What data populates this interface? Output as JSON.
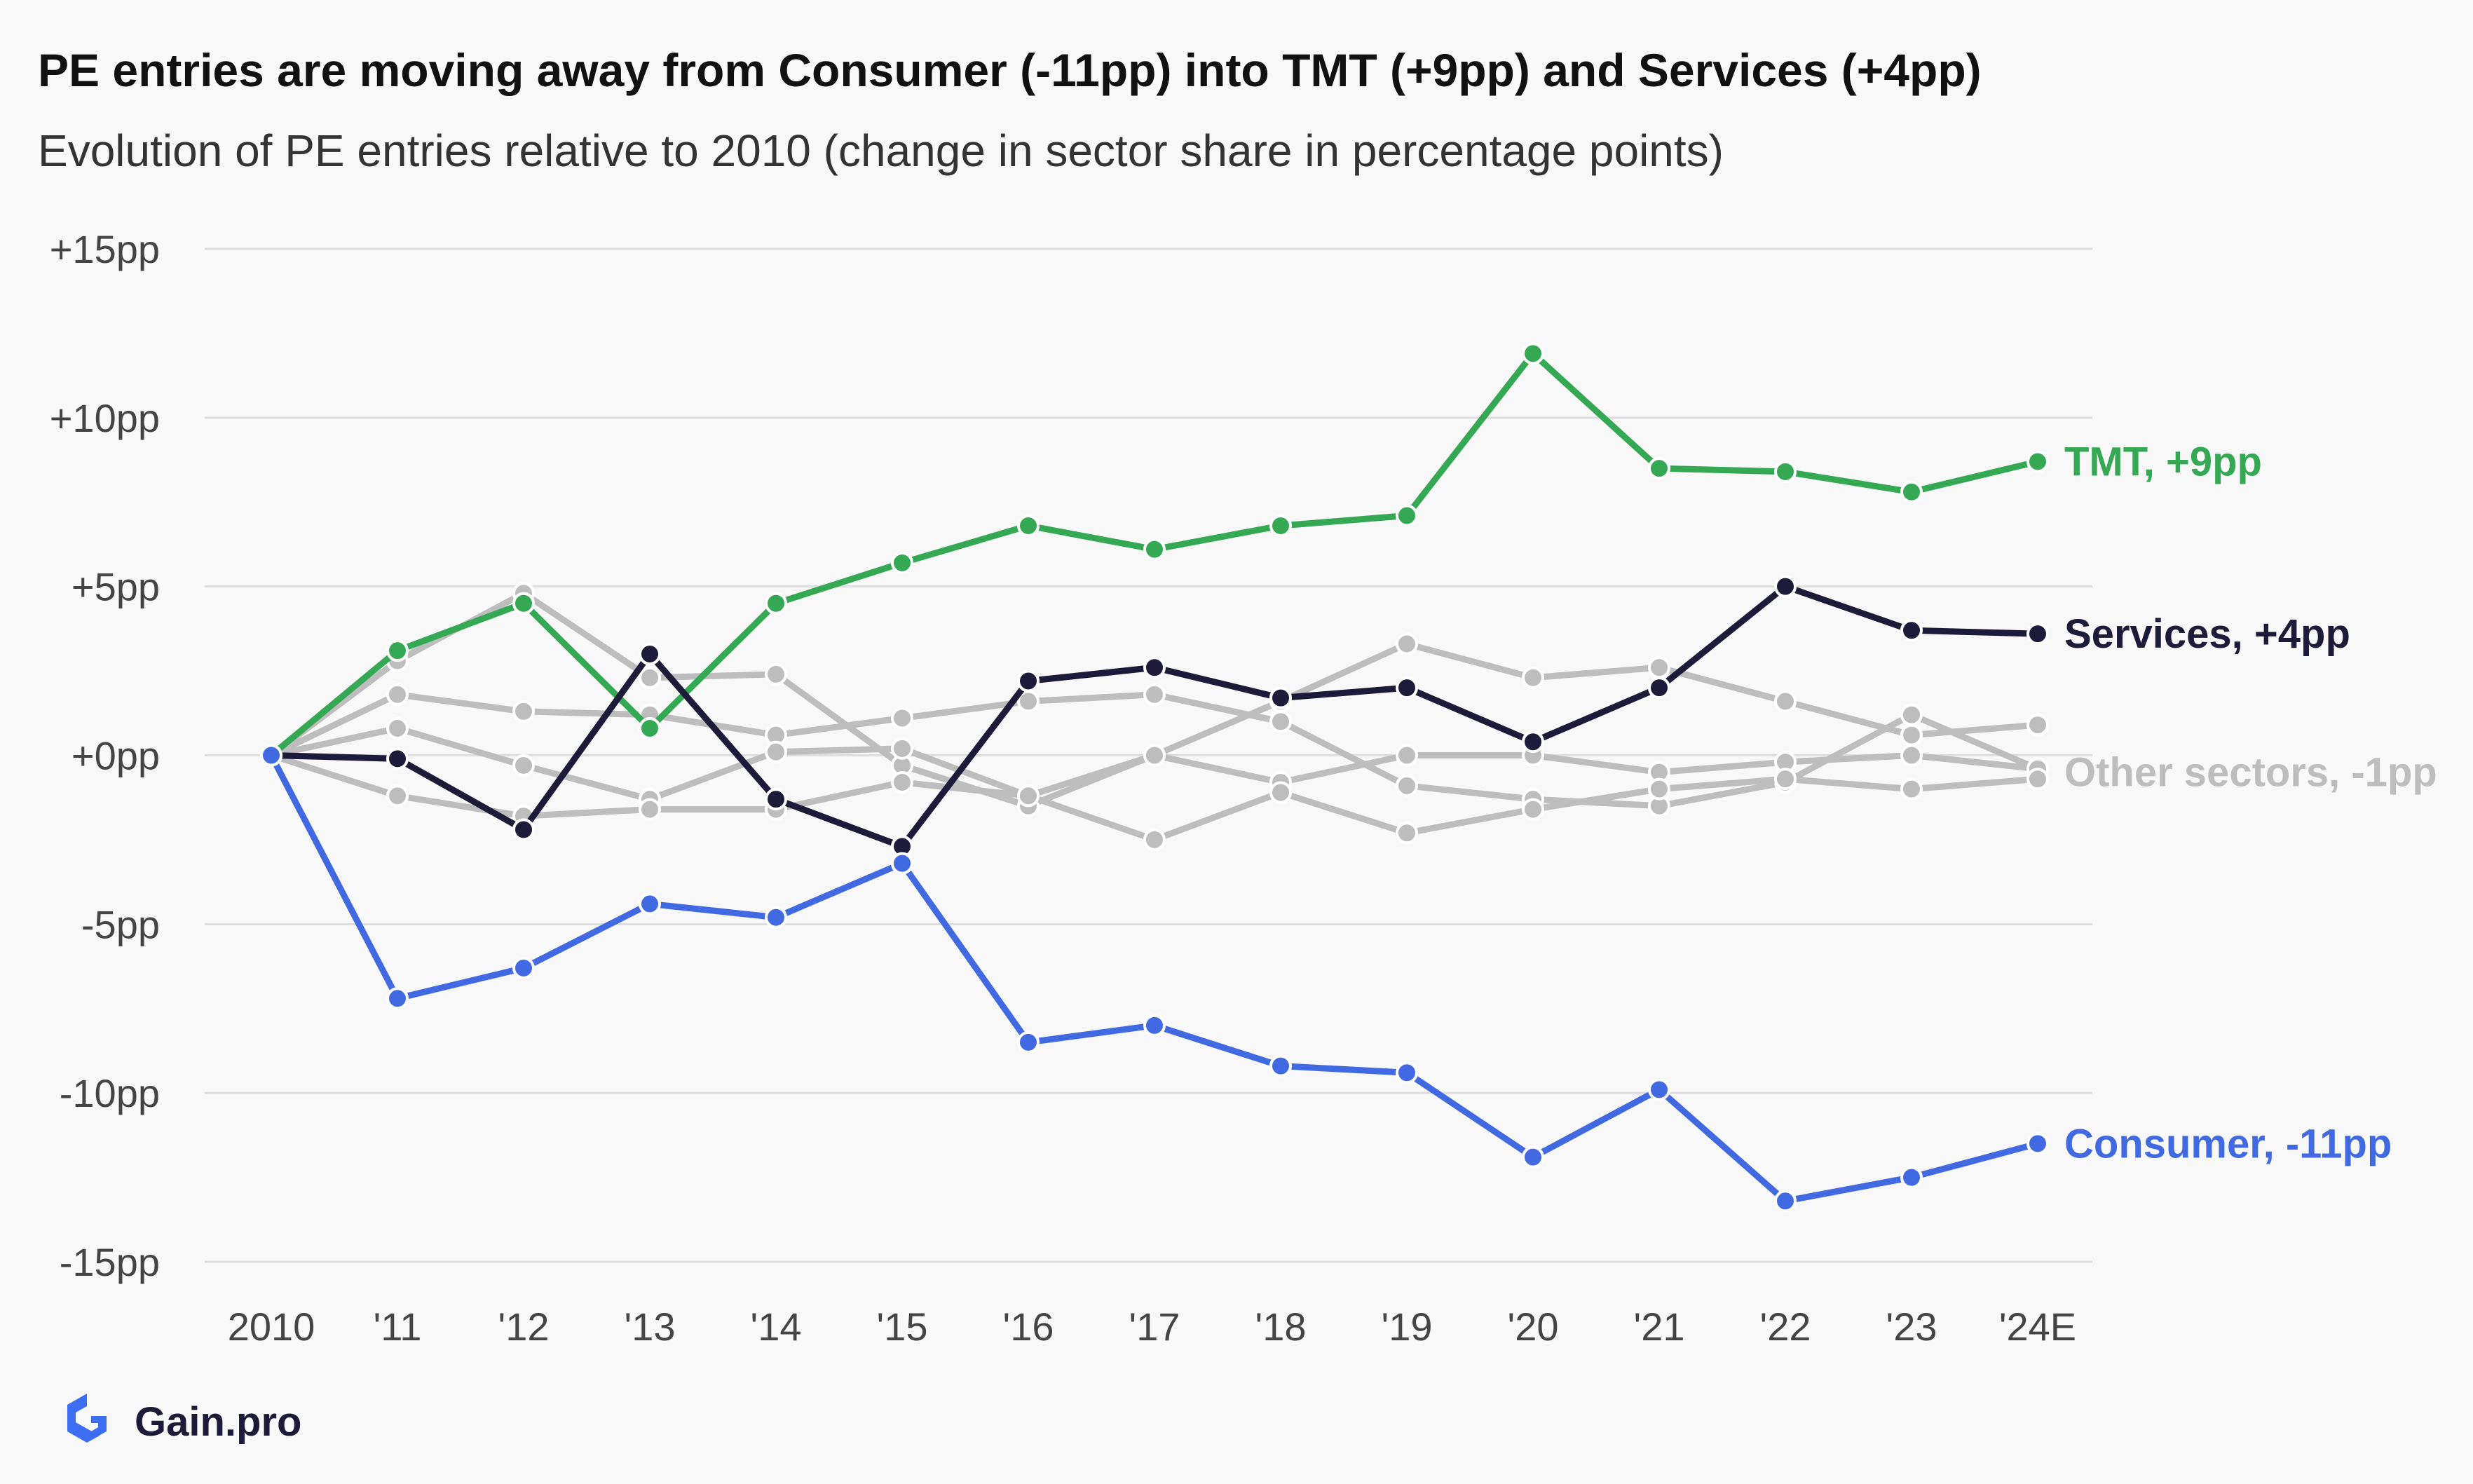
{
  "title": "PE entries are moving away from Consumer (-11pp) into TMT (+9pp) and Services (+4pp)",
  "subtitle": "Evolution of PE entries relative to 2010 (change in sector share in percentage points)",
  "brand": "Gain.pro",
  "colors": {
    "tmt": "#34a853",
    "services": "#1c1c3a",
    "consumer": "#4169e1",
    "other": "#bdbdbd",
    "grid": "#dddddd",
    "axis_text": "#444444"
  },
  "chart_data": {
    "type": "line",
    "categories": [
      "2010",
      "'11",
      "'12",
      "'13",
      "'14",
      "'15",
      "'16",
      "'17",
      "'18",
      "'19",
      "'20",
      "'21",
      "'22",
      "'23",
      "'24E"
    ],
    "ylim": [
      -15,
      15
    ],
    "yticks": [
      15,
      10,
      5,
      0,
      -5,
      -10,
      -15
    ],
    "ytick_labels": [
      "+15pp",
      "+10pp",
      "+5pp",
      "+0pp",
      "-5pp",
      "-10pp",
      "-15pp"
    ],
    "grid": "horizontal",
    "highlighted_series": [
      {
        "key": "tmt",
        "label": "TMT, +9pp",
        "color": "#34a853",
        "values": [
          0,
          3.1,
          4.5,
          0.8,
          4.5,
          5.7,
          6.8,
          6.1,
          6.8,
          7.1,
          11.9,
          8.5,
          8.4,
          7.8,
          8.7
        ]
      },
      {
        "key": "services",
        "label": "Services, +4pp",
        "color": "#1c1c3a",
        "values": [
          0,
          -0.1,
          -2.2,
          3.0,
          -1.3,
          -2.7,
          2.2,
          2.6,
          1.7,
          2.0,
          0.4,
          2.0,
          5.0,
          3.7,
          3.6
        ]
      },
      {
        "key": "consumer",
        "label": "Consumer, -11pp",
        "color": "#4169e1",
        "values": [
          0,
          -7.2,
          -6.3,
          -4.4,
          -4.8,
          -3.2,
          -8.5,
          -8.0,
          -9.2,
          -9.4,
          -11.9,
          -9.9,
          -13.2,
          -12.5,
          -11.5
        ]
      }
    ],
    "other_series": [
      {
        "values": [
          0,
          2.8,
          4.8,
          2.3,
          2.4,
          -0.3,
          -1.5,
          0.0,
          1.6,
          3.3,
          2.3,
          2.6,
          1.6,
          0.6,
          0.9
        ]
      },
      {
        "values": [
          0,
          1.8,
          1.3,
          1.2,
          0.6,
          1.1,
          1.6,
          1.8,
          1.0,
          -0.9,
          -1.3,
          -1.5,
          -0.8,
          1.2,
          -0.4
        ]
      },
      {
        "values": [
          0,
          0.8,
          -0.3,
          -1.3,
          0.1,
          0.2,
          -1.2,
          0.0,
          -0.8,
          0.0,
          0.0,
          -0.5,
          -0.2,
          0.0,
          -0.4
        ]
      },
      {
        "values": [
          0,
          -1.2,
          -1.8,
          -1.6,
          -1.6,
          -0.8,
          -1.2,
          -2.5,
          -1.1,
          -2.3,
          -1.6,
          -1.0,
          -0.7,
          -1.0,
          -0.7
        ]
      }
    ],
    "other_label": "Other sectors, -1pp"
  }
}
